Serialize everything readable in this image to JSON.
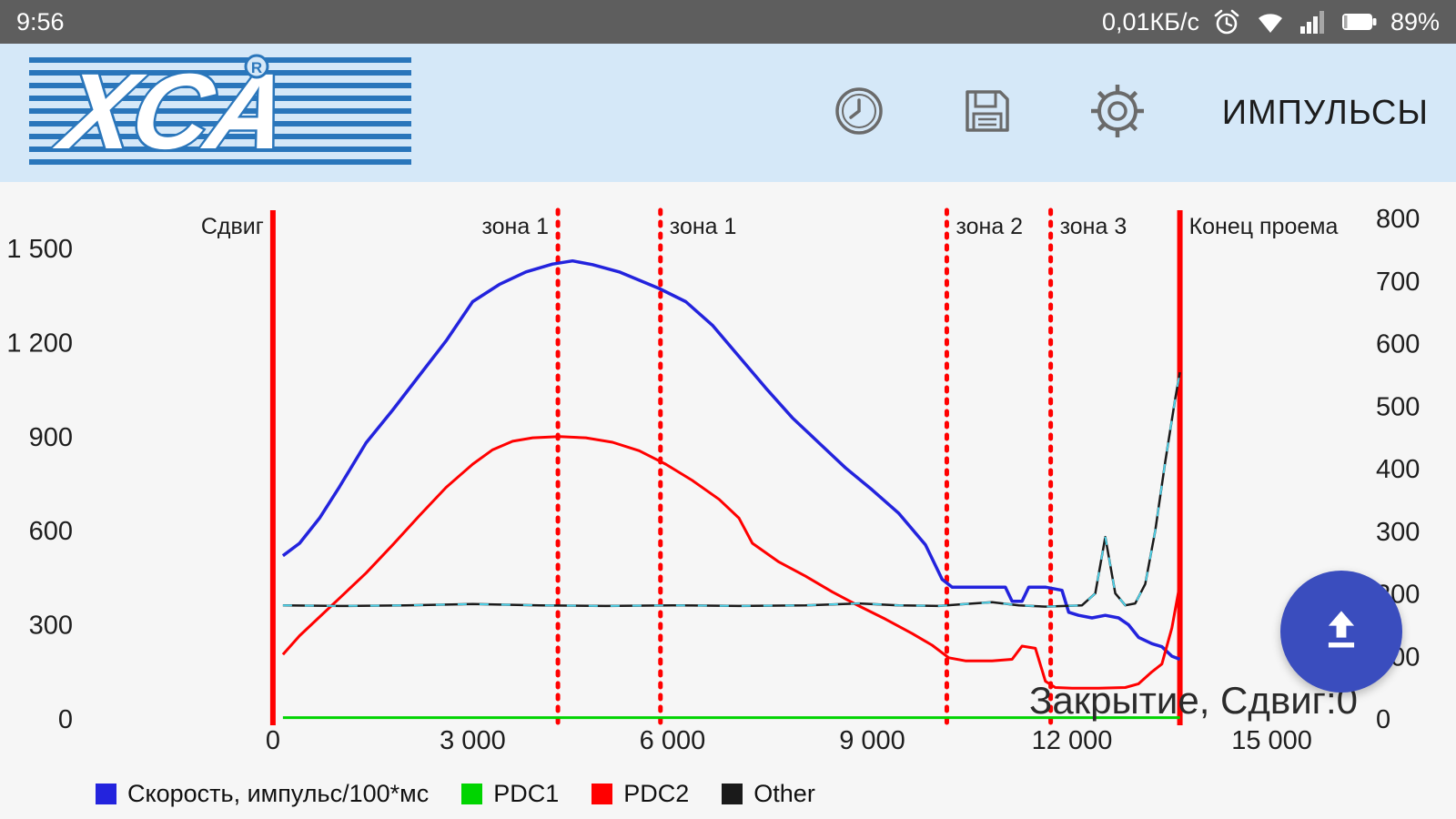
{
  "status_bar": {
    "time": "9:56",
    "network_speed": "0,01КБ/с",
    "battery_percent": "89%"
  },
  "app_bar": {
    "title": "ИМПУЛЬСЫ"
  },
  "overlay": {
    "status_text": "Закрытие, Сдвиг:0"
  },
  "fab": {
    "color": "#3a4dbe"
  },
  "chart_data": {
    "type": "line",
    "title": "",
    "xlabel": "",
    "ylabel_left": "",
    "ylabel_right": "",
    "grid": false,
    "legend_position": "bottom",
    "xlim": [
      -2800,
      16400
    ],
    "left_ylim": [
      0,
      1610
    ],
    "right_ylim": [
      0,
      800
    ],
    "x_ticks": [
      {
        "v": 0,
        "t": "0"
      },
      {
        "v": 3000,
        "t": "3 000"
      },
      {
        "v": 6000,
        "t": "6 000"
      },
      {
        "v": 9000,
        "t": "9 000"
      },
      {
        "v": 12000,
        "t": "12 000"
      },
      {
        "v": 15000,
        "t": "15 000"
      }
    ],
    "left_ticks": [
      {
        "v": 0,
        "t": "0"
      },
      {
        "v": 300,
        "t": "300"
      },
      {
        "v": 600,
        "t": "600"
      },
      {
        "v": 900,
        "t": "900"
      },
      {
        "v": 1200,
        "t": "1 200"
      },
      {
        "v": 1500,
        "t": "1 500"
      }
    ],
    "right_ticks": [
      {
        "v": 0,
        "t": "0"
      },
      {
        "v": 100,
        "t": "100"
      },
      {
        "v": 200,
        "t": "200"
      },
      {
        "v": 300,
        "t": "300"
      },
      {
        "v": 400,
        "t": "400"
      },
      {
        "v": 500,
        "t": "500"
      },
      {
        "v": 600,
        "t": "600"
      },
      {
        "v": 700,
        "t": "700"
      },
      {
        "v": 800,
        "t": "800"
      }
    ],
    "annotation_color": "#ff0000",
    "annotations": [
      {
        "label": "Сдвиг",
        "x": 0,
        "style": "solid",
        "side": "left"
      },
      {
        "label": "зона 1",
        "x": 4280,
        "style": "dotted",
        "side": "left"
      },
      {
        "label": "зона 1",
        "x": 5820,
        "style": "dotted",
        "side": "right"
      },
      {
        "label": "зона 2",
        "x": 10120,
        "style": "dotted",
        "side": "right"
      },
      {
        "label": "зона 3",
        "x": 11680,
        "style": "dotted",
        "side": "right"
      },
      {
        "label": "Конец проема",
        "x": 13620,
        "style": "solid",
        "side": "right"
      }
    ],
    "series": [
      {
        "key": "speed",
        "name": "Скорость, импульс/100*мс",
        "color": "#2323dd",
        "width": 3.5,
        "points": [
          [
            150,
            520
          ],
          [
            400,
            560
          ],
          [
            700,
            640
          ],
          [
            1000,
            740
          ],
          [
            1400,
            880
          ],
          [
            1800,
            985
          ],
          [
            2200,
            1095
          ],
          [
            2600,
            1205
          ],
          [
            3000,
            1330
          ],
          [
            3400,
            1385
          ],
          [
            3800,
            1425
          ],
          [
            4200,
            1450
          ],
          [
            4500,
            1460
          ],
          [
            4800,
            1448
          ],
          [
            5200,
            1425
          ],
          [
            5800,
            1372
          ],
          [
            6200,
            1330
          ],
          [
            6600,
            1255
          ],
          [
            7000,
            1155
          ],
          [
            7400,
            1055
          ],
          [
            7800,
            960
          ],
          [
            8200,
            880
          ],
          [
            8600,
            800
          ],
          [
            9000,
            730
          ],
          [
            9400,
            655
          ],
          [
            9800,
            555
          ],
          [
            10050,
            445
          ],
          [
            10200,
            420
          ],
          [
            10500,
            420
          ],
          [
            10800,
            420
          ],
          [
            11000,
            420
          ],
          [
            11100,
            375
          ],
          [
            11250,
            375
          ],
          [
            11350,
            420
          ],
          [
            11600,
            420
          ],
          [
            11850,
            410
          ],
          [
            11950,
            340
          ],
          [
            12100,
            330
          ],
          [
            12300,
            322
          ],
          [
            12500,
            330
          ],
          [
            12700,
            322
          ],
          [
            12850,
            300
          ],
          [
            13000,
            260
          ],
          [
            13200,
            240
          ],
          [
            13350,
            230
          ],
          [
            13500,
            200
          ],
          [
            13620,
            190
          ]
        ]
      },
      {
        "key": "pdc1",
        "name": "PDC1",
        "color": "#00d400",
        "width": 3,
        "points": [
          [
            150,
            4
          ],
          [
            13620,
            4
          ]
        ]
      },
      {
        "key": "pdc2",
        "name": "PDC2",
        "color": "#ff0000",
        "width": 3,
        "points": [
          [
            150,
            205
          ],
          [
            400,
            265
          ],
          [
            700,
            325
          ],
          [
            1000,
            385
          ],
          [
            1400,
            465
          ],
          [
            1800,
            555
          ],
          [
            2200,
            648
          ],
          [
            2600,
            738
          ],
          [
            3000,
            812
          ],
          [
            3300,
            858
          ],
          [
            3600,
            885
          ],
          [
            3900,
            896
          ],
          [
            4300,
            900
          ],
          [
            4700,
            896
          ],
          [
            5100,
            882
          ],
          [
            5500,
            855
          ],
          [
            5900,
            812
          ],
          [
            6300,
            760
          ],
          [
            6700,
            700
          ],
          [
            7000,
            640
          ],
          [
            7200,
            560
          ],
          [
            7600,
            500
          ],
          [
            8000,
            455
          ],
          [
            8400,
            405
          ],
          [
            8800,
            360
          ],
          [
            9200,
            318
          ],
          [
            9600,
            272
          ],
          [
            9900,
            235
          ],
          [
            10150,
            195
          ],
          [
            10400,
            185
          ],
          [
            10800,
            185
          ],
          [
            11100,
            190
          ],
          [
            11250,
            232
          ],
          [
            11450,
            225
          ],
          [
            11600,
            120
          ],
          [
            11750,
            100
          ],
          [
            12000,
            98
          ],
          [
            12400,
            98
          ],
          [
            12800,
            100
          ],
          [
            13000,
            112
          ],
          [
            13200,
            150
          ],
          [
            13350,
            175
          ],
          [
            13500,
            290
          ],
          [
            13620,
            430
          ]
        ]
      },
      {
        "key": "other",
        "name": "Other",
        "color": "#1a1a1a",
        "width": 2.5,
        "dash_overlay": "#4fd1e8",
        "points": [
          [
            150,
            362
          ],
          [
            1000,
            360
          ],
          [
            2000,
            362
          ],
          [
            3000,
            366
          ],
          [
            4000,
            362
          ],
          [
            5000,
            360
          ],
          [
            6000,
            362
          ],
          [
            7000,
            360
          ],
          [
            8000,
            362
          ],
          [
            8800,
            368
          ],
          [
            9400,
            362
          ],
          [
            10000,
            360
          ],
          [
            10400,
            366
          ],
          [
            10800,
            372
          ],
          [
            11200,
            362
          ],
          [
            11600,
            358
          ],
          [
            11900,
            360
          ],
          [
            12150,
            362
          ],
          [
            12350,
            400
          ],
          [
            12500,
            580
          ],
          [
            12650,
            400
          ],
          [
            12800,
            362
          ],
          [
            12950,
            368
          ],
          [
            13100,
            430
          ],
          [
            13250,
            600
          ],
          [
            13400,
            820
          ],
          [
            13550,
            1020
          ],
          [
            13620,
            1105
          ]
        ]
      }
    ]
  }
}
